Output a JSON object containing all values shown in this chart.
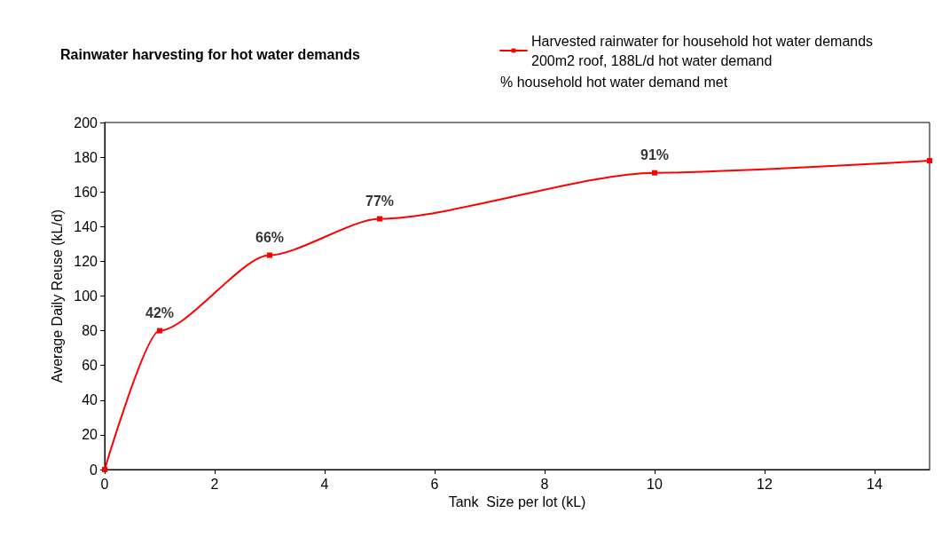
{
  "chart_data": {
    "type": "line",
    "title": "Rainwater harvesting for hot water demands",
    "xlabel": "Tank  Size per lot (kL)",
    "ylabel": "Average Daily Reuse (kL/d)",
    "x": [
      0,
      1,
      3,
      5,
      10,
      15
    ],
    "series": [
      {
        "name": "Harvested rainwater for household hot water demands 200m2 roof, 188L/d hot water demand",
        "color": "#ff0000",
        "values": [
          0,
          80,
          123.5,
          144.5,
          171,
          178
        ]
      }
    ],
    "xlim": [
      0,
      15
    ],
    "xticks": [
      0,
      2,
      4,
      6,
      8,
      10,
      12,
      14
    ],
    "ylim": [
      0,
      200
    ],
    "yticks": [
      0,
      20,
      40,
      60,
      80,
      100,
      120,
      140,
      160,
      180,
      200
    ],
    "grid": false,
    "legend": "top right",
    "marker": "square",
    "line_style": "solid",
    "annotations": [
      "% household hot water demand met",
      {
        "text": "42%",
        "x": 1,
        "y": 80
      },
      {
        "text": "66%",
        "x": 3,
        "y": 123.5
      },
      {
        "text": "77%",
        "x": 5,
        "y": 144.5
      },
      {
        "text": "91%",
        "x": 10,
        "y": 171
      }
    ]
  }
}
